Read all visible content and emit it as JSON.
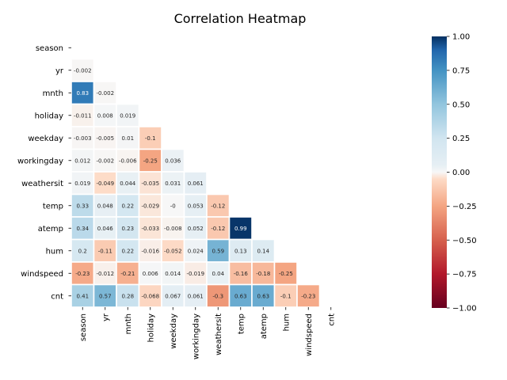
{
  "chart_data": {
    "type": "heatmap",
    "title": "Correlation Heatmap",
    "variables": [
      "season",
      "yr",
      "mnth",
      "holiday",
      "weekday",
      "workingday",
      "weathersit",
      "temp",
      "atemp",
      "hum",
      "windspeed",
      "cnt"
    ],
    "cell_labels": [
      [],
      [
        "-0.002"
      ],
      [
        "0.83",
        "-0.002"
      ],
      [
        "-0.011",
        "0.008",
        "0.019"
      ],
      [
        "-0.003",
        "-0.005",
        "0.01",
        "-0.1"
      ],
      [
        "0.012",
        "-0.002",
        "-0.006",
        "-0.25",
        "0.036"
      ],
      [
        "0.019",
        "-0.049",
        "0.044",
        "-0.035",
        "0.031",
        "0.061"
      ],
      [
        "0.33",
        "0.048",
        "0.22",
        "-0.029",
        "-0",
        "0.053",
        "-0.12"
      ],
      [
        "0.34",
        "0.046",
        "0.23",
        "-0.033",
        "-0.008",
        "0.052",
        "-0.12",
        "0.99"
      ],
      [
        "0.2",
        "-0.11",
        "0.22",
        "-0.016",
        "-0.052",
        "0.024",
        "0.59",
        "0.13",
        "0.14"
      ],
      [
        "-0.23",
        "-0.012",
        "-0.21",
        "0.006",
        "0.014",
        "-0.019",
        "0.04",
        "-0.16",
        "-0.18",
        "-0.25"
      ],
      [
        "0.41",
        "0.57",
        "0.28",
        "-0.068",
        "0.067",
        "0.061",
        "-0.3",
        "0.63",
        "0.63",
        "-0.1",
        "-0.23"
      ]
    ],
    "colorbar": {
      "range": [
        -1,
        1
      ],
      "tick_labels": [
        "1.00",
        "0.75",
        "0.50",
        "0.25",
        "0.00",
        "−0.25",
        "−0.50",
        "−0.75",
        "−1.00"
      ],
      "colormap": "RdBu"
    },
    "mask": "upper-triangle-and-diagonal",
    "cell_border_color": "#ffffff"
  }
}
